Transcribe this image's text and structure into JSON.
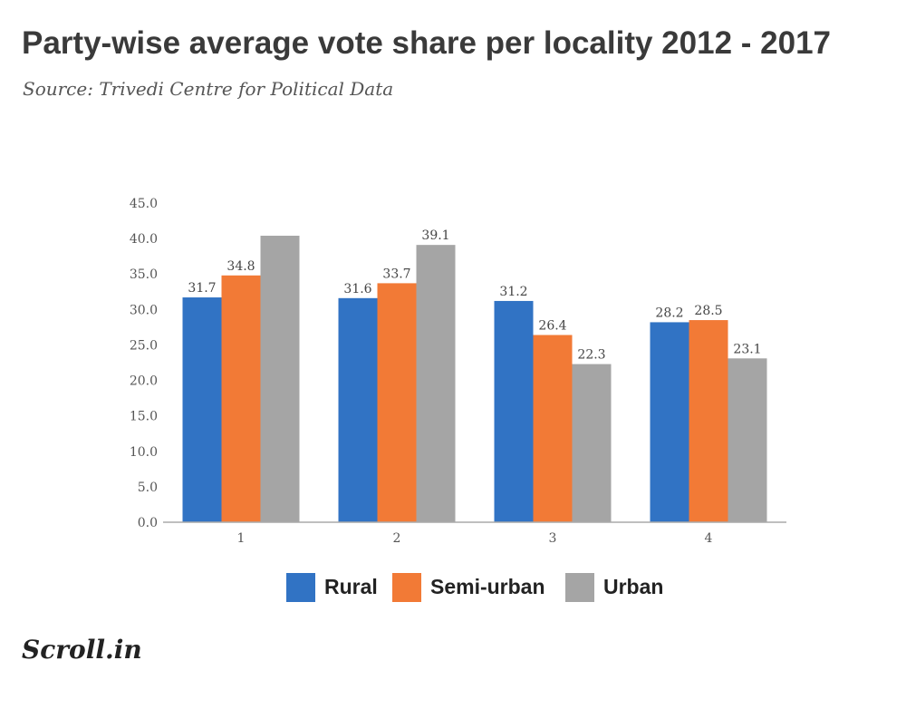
{
  "header": {
    "title": "Party-wise average vote share per locality 2012 - 2017",
    "subtitle": "Source: Trivedi Centre for Political Data"
  },
  "branding": {
    "logo": "Scroll.in"
  },
  "chart_data": {
    "type": "bar",
    "title": "Party-wise average vote share per locality 2012 - 2017",
    "subtitle": "Source: Trivedi Centre for Political Data",
    "categories": [
      "1",
      "2",
      "3",
      "4"
    ],
    "series": [
      {
        "name": "Rural",
        "color": "#3173C4",
        "values": [
          31.7,
          31.6,
          31.2,
          28.2
        ]
      },
      {
        "name": "Semi-urban",
        "color": "#F27A36",
        "values": [
          34.8,
          33.7,
          26.4,
          28.5
        ]
      },
      {
        "name": "Urban",
        "color": "#A5A5A5",
        "values": [
          40.4,
          39.1,
          22.3,
          23.1
        ]
      }
    ],
    "data_labels": [
      [
        "31.7",
        "34.8",
        ""
      ],
      [
        "31.6",
        "33.7",
        "39.1"
      ],
      [
        "31.2",
        "26.4",
        "22.3"
      ],
      [
        "28.2",
        "28.5",
        "23.1"
      ]
    ],
    "yticks": [
      "0.0",
      "5.0",
      "10.0",
      "15.0",
      "20.0",
      "25.0",
      "30.0",
      "35.0",
      "40.0",
      "45.0"
    ],
    "ylim": [
      0,
      45
    ],
    "xlabel": "",
    "ylabel": "",
    "grid": false,
    "legend_position": "bottom"
  }
}
